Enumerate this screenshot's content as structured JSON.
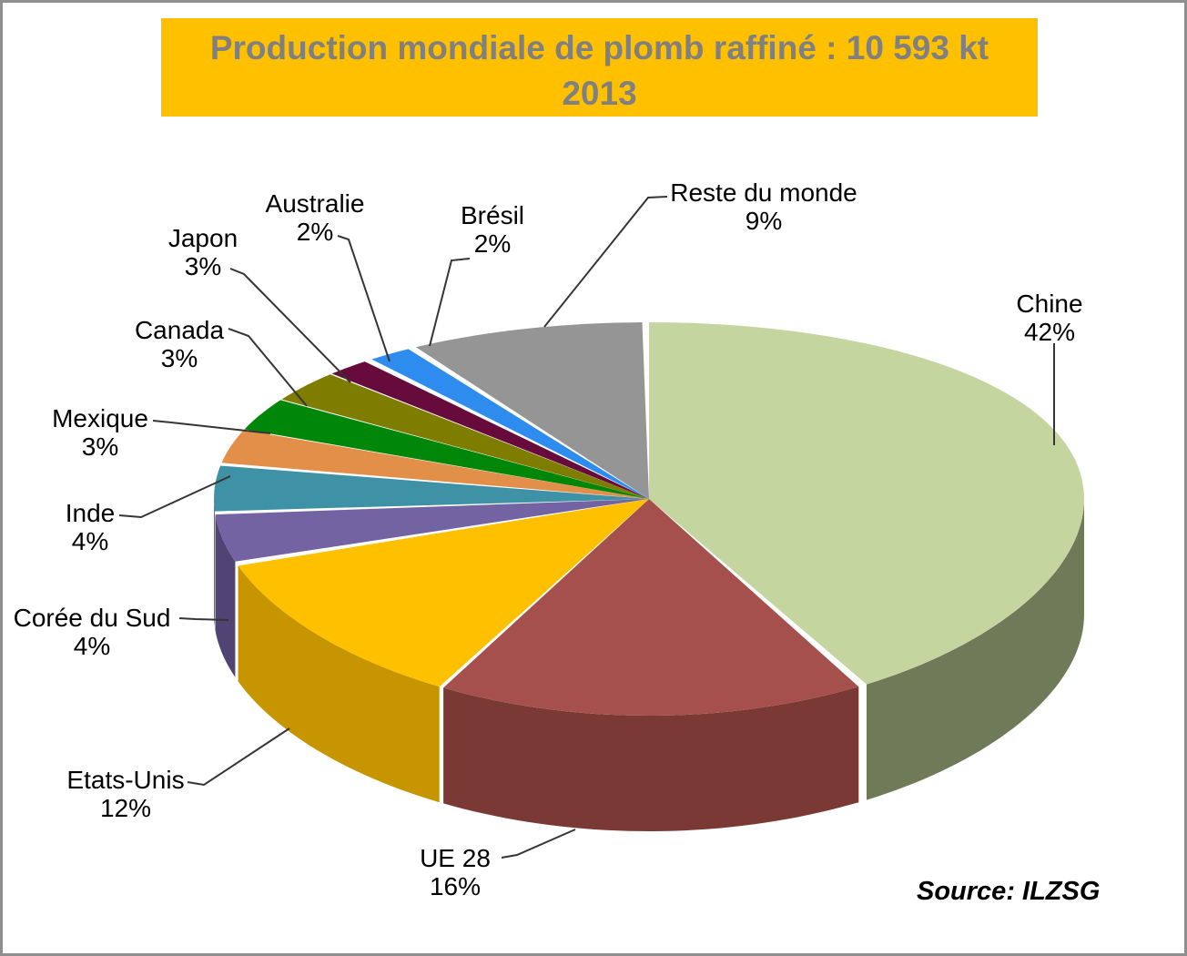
{
  "title": {
    "line1": "Production mondiale de plomb raffiné : 10 593 kt",
    "line2": "2013",
    "bg_color": "#FFC000",
    "text_color": "#808080"
  },
  "source": {
    "label": "Source: ILZSG"
  },
  "leader_line_color": "#353535",
  "chart_data": {
    "type": "pie",
    "style": "3d",
    "title": "Production mondiale de plomb raffiné : 10 593 kt 2013",
    "total": "10 593 kt",
    "year": "2013",
    "unit": "%",
    "legend": "none",
    "labels_position": "outside-leader-lines",
    "slices": [
      {
        "label": "Chine",
        "value": 42,
        "color": "#C5D5A0",
        "side": "#6F7B58"
      },
      {
        "label": "UE 28",
        "value": 16,
        "color": "#A6504D",
        "side": "#7B3936"
      },
      {
        "label": "Etats-Unis",
        "value": 12,
        "color": "#FFC000",
        "side": "#C69500"
      },
      {
        "label": "Corée du Sud",
        "value": 4,
        "color": "#7463A2",
        "side": "#4F4474"
      },
      {
        "label": "Inde",
        "value": 4,
        "color": "#3F92A6",
        "side": "#2F6E7E"
      },
      {
        "label": "Mexique",
        "value": 3,
        "color": "#E28F4A"
      },
      {
        "label": "Canada",
        "value": 3,
        "color": "#008609"
      },
      {
        "label": "Japon",
        "value": 3,
        "color": "#7F7D00"
      },
      {
        "label": "Australie",
        "value": 2,
        "color": "#660B3C"
      },
      {
        "label": "Brésil",
        "value": 2,
        "color": "#2E8CEE"
      },
      {
        "label": "Reste du monde",
        "value": 9,
        "color": "#959595"
      }
    ]
  }
}
